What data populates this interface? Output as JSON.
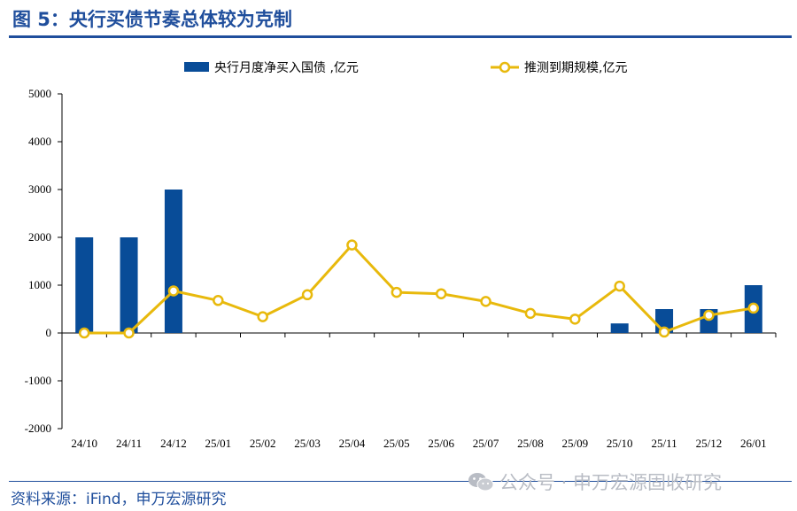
{
  "figure": {
    "title": "图 5：央行买债节奏总体较为克制",
    "source": "资料来源：iFind，申万宏源研究",
    "watermark": "公众号 · 申万宏源固收研究"
  },
  "colors": {
    "bar": "#084c98",
    "line": "#e8b90c",
    "title": "#1f4e9c"
  },
  "chart_data": {
    "type": "bar+line",
    "categories": [
      "24/10",
      "24/11",
      "24/12",
      "25/01",
      "25/02",
      "25/03",
      "25/04",
      "25/05",
      "25/06",
      "25/07",
      "25/08",
      "25/09",
      "25/10",
      "25/11",
      "25/12",
      "26/01"
    ],
    "series": [
      {
        "name": "央行月度净买入国债 ,亿元",
        "type": "bar",
        "values": [
          2000,
          2000,
          3000,
          0,
          0,
          0,
          0,
          0,
          0,
          0,
          0,
          0,
          200,
          500,
          500,
          1000
        ]
      },
      {
        "name": "推测到期规模,亿元",
        "type": "line",
        "values": [
          0,
          0,
          880,
          680,
          340,
          800,
          1840,
          850,
          820,
          660,
          410,
          290,
          980,
          20,
          370,
          520
        ]
      }
    ],
    "ylim": [
      -2000,
      5000
    ],
    "yticks": [
      -2000,
      -1000,
      0,
      1000,
      2000,
      3000,
      4000,
      5000
    ],
    "legend": "top",
    "grid": false
  }
}
